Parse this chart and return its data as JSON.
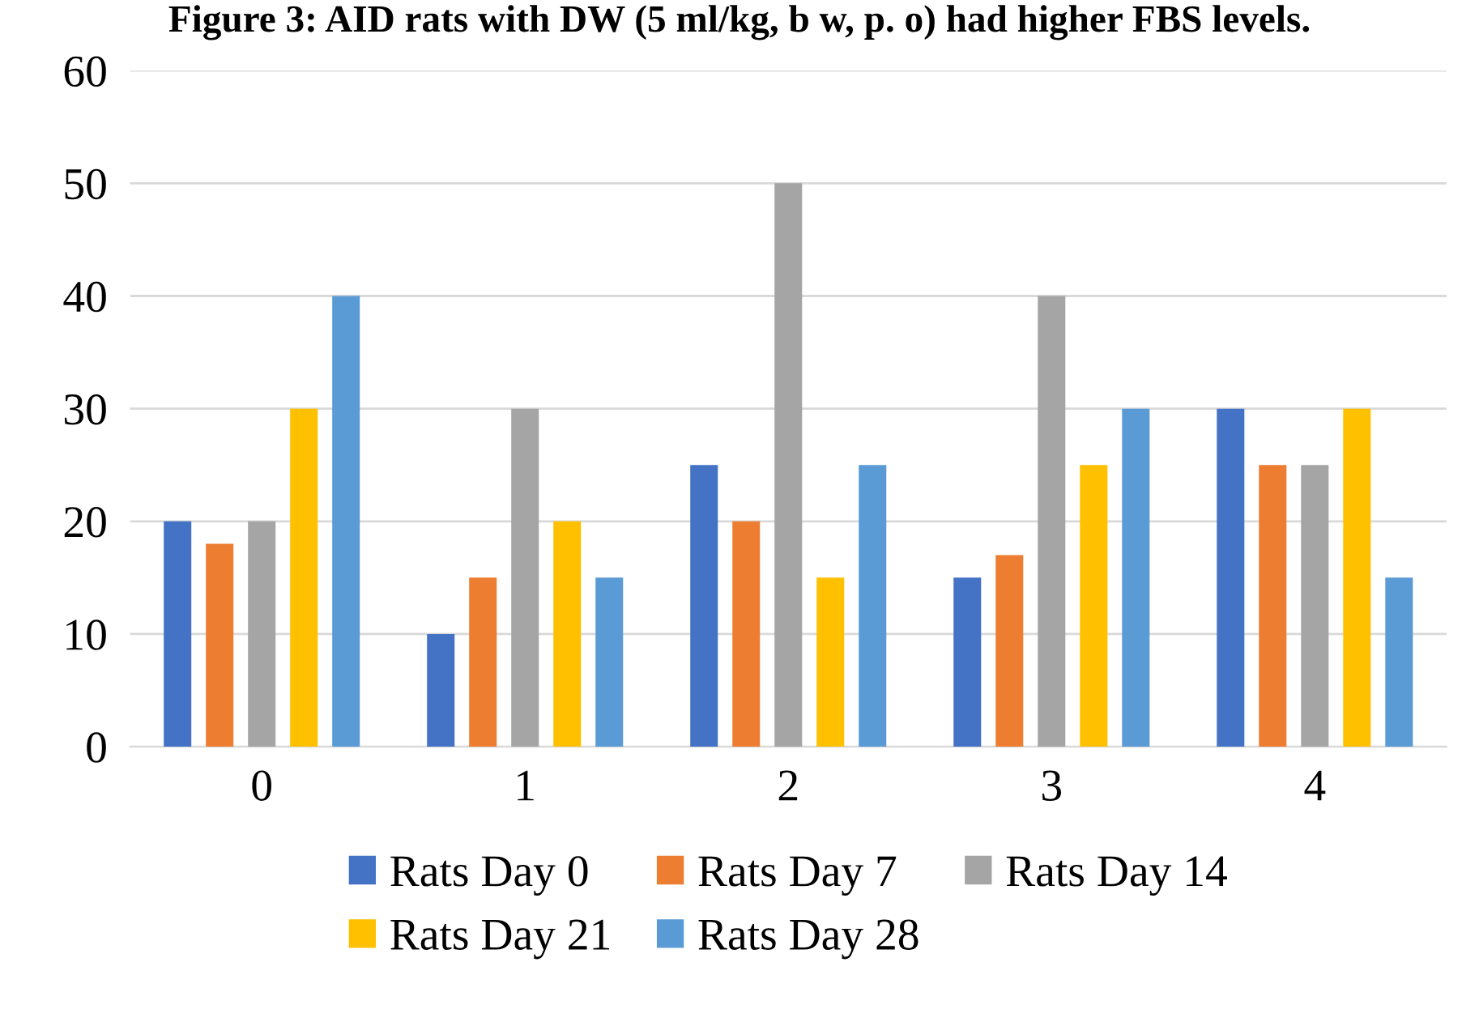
{
  "chart_data": {
    "type": "bar",
    "title": "Figure 3: AID rats with DW (5 ml/kg, b w, p. o) had higher FBS levels.",
    "categories": [
      "0",
      "1",
      "2",
      "3",
      "4"
    ],
    "series": [
      {
        "name": "Rats Day 0",
        "color": "#4472c4",
        "values": [
          20,
          10,
          25,
          15,
          30
        ]
      },
      {
        "name": "Rats Day 7",
        "color": "#ed7d31",
        "values": [
          18,
          15,
          20,
          17,
          25
        ]
      },
      {
        "name": "Rats Day 14",
        "color": "#a5a5a5",
        "values": [
          20,
          30,
          50,
          40,
          25
        ]
      },
      {
        "name": "Rats Day 21",
        "color": "#ffc000",
        "values": [
          30,
          20,
          15,
          25,
          30
        ]
      },
      {
        "name": "Rats Day 28",
        "color": "#5b9bd5",
        "values": [
          40,
          15,
          25,
          30,
          15
        ]
      }
    ],
    "ylim": [
      0,
      60
    ],
    "yticks": [
      0,
      10,
      20,
      30,
      40,
      50,
      60
    ],
    "grid": "y",
    "legend": "bottom"
  }
}
